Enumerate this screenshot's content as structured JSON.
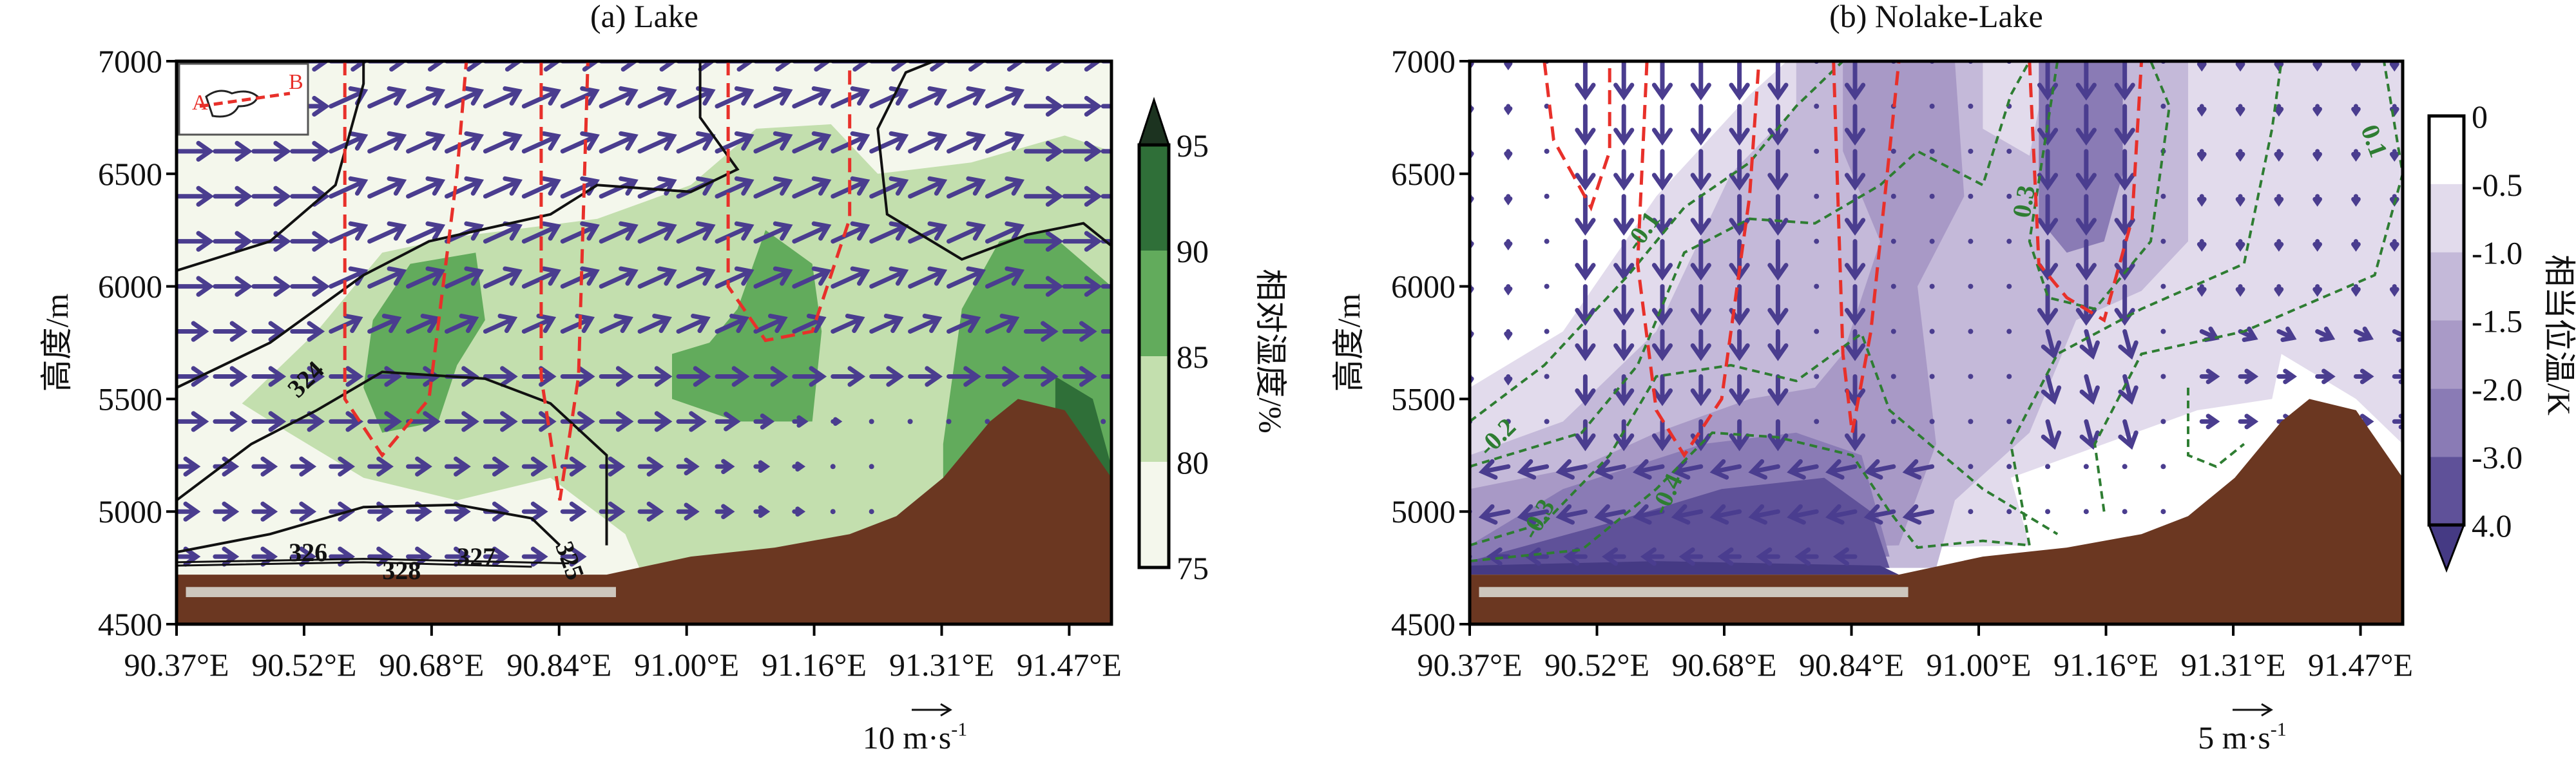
{
  "chart_data": [
    {
      "type": "contour",
      "title": "(a) Lake",
      "xlabel": "",
      "ylabel": "高度/m",
      "x_ticks": [
        "90.37°E",
        "90.52°E",
        "90.68°E",
        "90.84°E",
        "91.00°E",
        "91.16°E",
        "91.31°E",
        "91.47°E"
      ],
      "y_ticks": [
        "4500",
        "5000",
        "5500",
        "6000",
        "6500",
        "7000"
      ],
      "ylim": [
        4500,
        7000
      ],
      "colorbar": {
        "label": "相对湿度/%",
        "levels": [
          "75",
          "80",
          "85",
          "90",
          "95"
        ],
        "colors": [
          "#f4f7ec",
          "#c3dfae",
          "#62ab5c",
          "#2f6f38",
          "#1c3320"
        ],
        "extend": "max"
      },
      "contour_labels": [
        "324",
        "325",
        "326",
        "327",
        "328"
      ],
      "wind_reference": {
        "value": "10 m·s",
        "exp": "-1"
      },
      "inset_labels": [
        "A",
        "B"
      ]
    },
    {
      "type": "contour",
      "title": "(b) Nolake-Lake",
      "xlabel": "",
      "ylabel": "高度/m",
      "x_ticks": [
        "90.37°E",
        "90.52°E",
        "90.68°E",
        "90.84°E",
        "91.00°E",
        "91.16°E",
        "91.31°E",
        "91.47°E"
      ],
      "y_ticks": [
        "4500",
        "5000",
        "5500",
        "6000",
        "6500",
        "7000"
      ],
      "ylim": [
        4500,
        7000
      ],
      "colorbar": {
        "label": "相当位温/K",
        "levels": [
          "0",
          "-0.5",
          "-1.0",
          "-1.5",
          "-2.0",
          "-3.0",
          "4.0"
        ],
        "colors": [
          "#ffffff",
          "#e2dbec",
          "#c4b9d9",
          "#a99ac7",
          "#8a7bb5",
          "#5f5199",
          "#453a84"
        ],
        "extend": "min"
      },
      "contour_labels": [
        "0.1",
        "0.3",
        "-0.1",
        "-0.2",
        "-0.3",
        "-0.4"
      ],
      "wind_reference": {
        "value": "5 m·s",
        "exp": "-1"
      }
    }
  ]
}
